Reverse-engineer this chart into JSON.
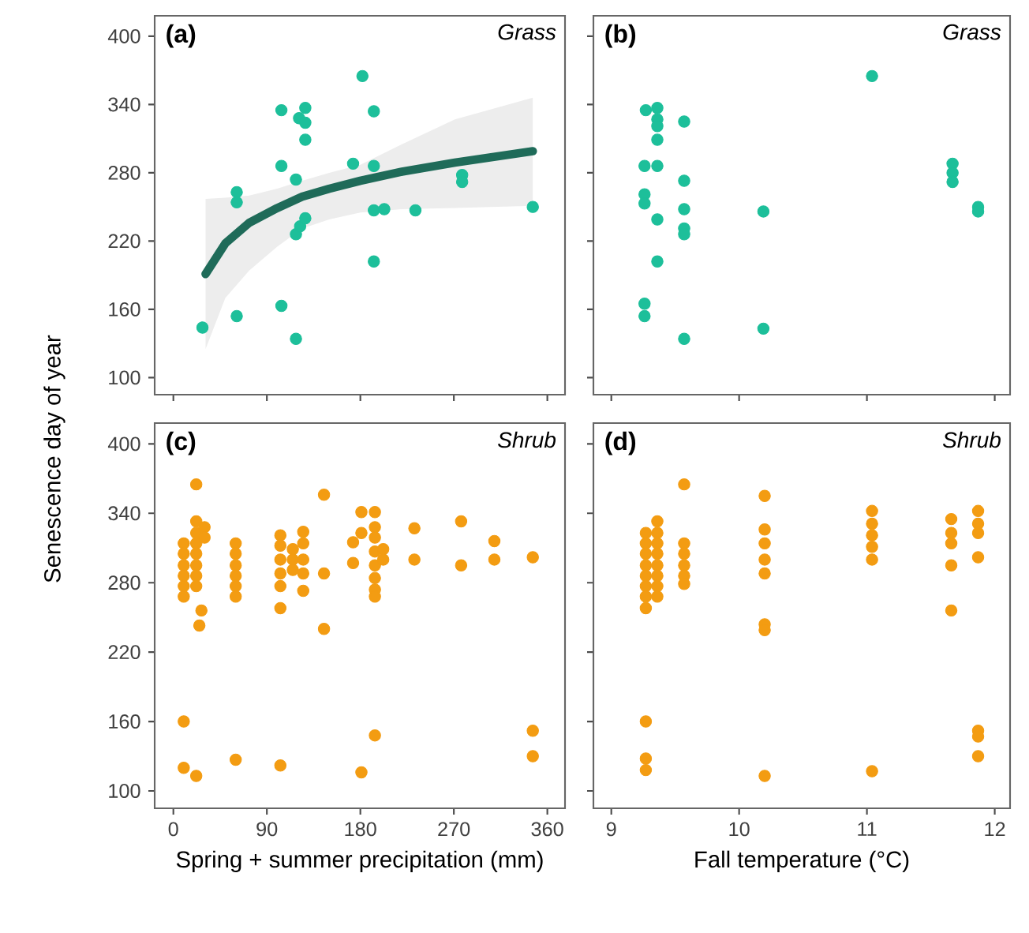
{
  "chart_data": [
    {
      "type": "scatter",
      "title": "(a)",
      "subtitle": "Grass",
      "ylabel": "Senescence day of year",
      "tick_labels": "y",
      "xlim": [
        -18,
        377
      ],
      "ylim": [
        85,
        418
      ],
      "xticks": [
        0,
        90,
        180,
        270,
        360
      ],
      "yticks": [
        100,
        160,
        220,
        280,
        340,
        400
      ],
      "series": [
        {
          "type": "scatter",
          "marker": "circle",
          "color": "#1dbf9a",
          "x": [
            28,
            61,
            61,
            61,
            104,
            104,
            104,
            118,
            118,
            118,
            122,
            127,
            127,
            121,
            127,
            127,
            173,
            182,
            193,
            193,
            193,
            203,
            193,
            233,
            278,
            278,
            346
          ],
          "values": [
            144,
            263,
            254,
            154,
            335,
            286,
            163,
            274,
            134,
            226,
            233,
            240,
            337,
            328,
            324,
            309,
            288,
            365,
            334,
            286,
            247,
            248,
            202,
            247,
            278,
            272,
            250
          ]
        },
        {
          "type": "line",
          "color": "#1f6b59",
          "x": [
            31,
            50,
            73,
            100,
            124,
            150,
            180,
            220,
            271,
            346
          ],
          "values": [
            191,
            218,
            236,
            249,
            259,
            266,
            273,
            281,
            289,
            299
          ],
          "lower": [
            125,
            170,
            194,
            215,
            231,
            239,
            245,
            248,
            249,
            251
          ],
          "upper": [
            257,
            258,
            260,
            266,
            273,
            280,
            287,
            305,
            327,
            346
          ]
        }
      ]
    },
    {
      "type": "scatter",
      "title": "(b)",
      "subtitle": "Grass",
      "marker": "circle",
      "tick_labels": false,
      "xlim": [
        8.86,
        12.12
      ],
      "ylim": [
        85,
        418
      ],
      "xticks": [
        9,
        10,
        11,
        12
      ],
      "yticks": [
        100,
        160,
        220,
        280,
        340,
        400
      ],
      "series": [
        {
          "type": "scatter",
          "color": "#1dbf9a",
          "x": [
            9.27,
            9.36,
            9.36,
            9.36,
            9.57,
            9.36,
            9.26,
            9.36,
            9.57,
            9.26,
            9.26,
            9.36,
            9.57,
            9.57,
            9.57,
            9.36,
            9.26,
            9.26,
            9.57,
            10.19,
            10.19,
            11.04,
            11.67,
            11.67,
            11.67,
            11.87,
            11.87
          ],
          "values": [
            335,
            337,
            327,
            321,
            325,
            309,
            286,
            286,
            273,
            261,
            253,
            239,
            248,
            231,
            226,
            202,
            165,
            154,
            134,
            246,
            143,
            365,
            288,
            280,
            272,
            250,
            246
          ]
        }
      ]
    },
    {
      "type": "scatter",
      "title": "(c)",
      "subtitle": "Shrub",
      "xlabel": "Spring + summer precipitation (mm)",
      "marker": "circle",
      "xlim": [
        -18,
        377
      ],
      "ylim": [
        85,
        418
      ],
      "xticks": [
        0,
        90,
        180,
        270,
        360
      ],
      "yticks": [
        100,
        160,
        220,
        280,
        340,
        400
      ],
      "series": [
        {
          "type": "scatter",
          "color": "#f39c12",
          "x": [
            10,
            10,
            10,
            10,
            10,
            10,
            10,
            10,
            22,
            22,
            22,
            22,
            22,
            22,
            22,
            22,
            22,
            30,
            30,
            27,
            25,
            60,
            60,
            60,
            60,
            60,
            60,
            60,
            103,
            103,
            103,
            103,
            103,
            103,
            103,
            115,
            115,
            115,
            125,
            125,
            125,
            125,
            125,
            145,
            145,
            145,
            173,
            173,
            181,
            181,
            181,
            194,
            194,
            194,
            194,
            194,
            194,
            194,
            194,
            194,
            202,
            202,
            232,
            232,
            277,
            277,
            309,
            309,
            346,
            346,
            346
          ],
          "values": [
            314,
            305,
            295,
            286,
            277,
            268,
            160,
            120,
            365,
            333,
            323,
            314,
            305,
            295,
            286,
            277,
            113,
            328,
            319,
            256,
            243,
            314,
            305,
            295,
            286,
            277,
            268,
            127,
            321,
            312,
            300,
            288,
            277,
            258,
            122,
            309,
            300,
            291,
            324,
            314,
            300,
            288,
            273,
            356,
            288,
            240,
            315,
            297,
            341,
            323,
            116,
            341,
            328,
            319,
            307,
            295,
            284,
            274,
            268,
            148,
            309,
            300,
            327,
            300,
            333,
            295,
            316,
            300,
            302,
            152,
            130
          ]
        }
      ]
    },
    {
      "type": "scatter",
      "title": "(d)",
      "subtitle": "Shrub",
      "xlabel": "Fall temperature (°C)",
      "marker": "circle",
      "tick_labels": "x",
      "xlim": [
        8.86,
        12.12
      ],
      "ylim": [
        85,
        418
      ],
      "xticks": [
        9,
        10,
        11,
        12
      ],
      "yticks": [
        100,
        160,
        220,
        280,
        340,
        400
      ],
      "series": [
        {
          "type": "scatter",
          "color": "#f39c12",
          "x": [
            9.27,
            9.27,
            9.27,
            9.27,
            9.27,
            9.27,
            9.27,
            9.27,
            9.27,
            9.27,
            9.27,
            9.36,
            9.36,
            9.36,
            9.36,
            9.36,
            9.36,
            9.36,
            9.36,
            9.57,
            9.57,
            9.57,
            9.57,
            9.57,
            9.57,
            10.2,
            10.2,
            10.2,
            10.2,
            10.2,
            10.2,
            10.2,
            10.2,
            11.04,
            11.04,
            11.04,
            11.04,
            11.04,
            11.04,
            11.66,
            11.66,
            11.66,
            11.66,
            11.66,
            11.87,
            11.87,
            11.87,
            11.87,
            11.87,
            11.87,
            11.87
          ],
          "values": [
            323,
            314,
            305,
            295,
            286,
            277,
            268,
            258,
            160,
            128,
            118,
            333,
            323,
            314,
            305,
            295,
            286,
            277,
            268,
            365,
            314,
            305,
            295,
            286,
            279,
            355,
            326,
            314,
            300,
            288,
            244,
            239,
            113,
            342,
            331,
            321,
            311,
            300,
            117,
            335,
            323,
            314,
            295,
            256,
            342,
            331,
            323,
            302,
            152,
            147,
            130
          ]
        }
      ]
    }
  ]
}
